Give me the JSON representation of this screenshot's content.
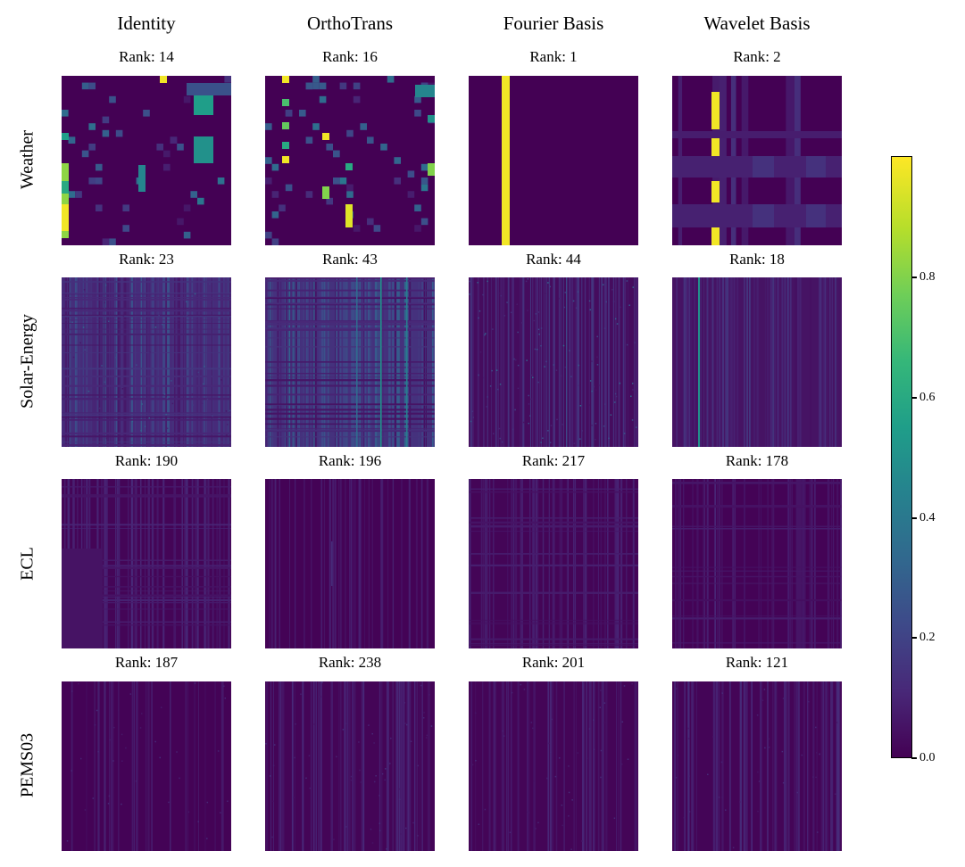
{
  "chart_data": {
    "type": "heatmap",
    "columns": [
      "Identity",
      "OrthoTrans",
      "Fourier Basis",
      "Wavelet Basis"
    ],
    "rows": [
      "Weather",
      "Solar-Energy",
      "ECL",
      "PEMS03"
    ],
    "ranks": [
      [
        "Rank: 14",
        "Rank: 16",
        "Rank: 1",
        "Rank: 2"
      ],
      [
        "Rank: 23",
        "Rank: 43",
        "Rank: 44",
        "Rank: 18"
      ],
      [
        "Rank: 190",
        "Rank: 196",
        "Rank: 217",
        "Rank: 178"
      ],
      [
        "Rank: 187",
        "Rank: 238",
        "Rank: 201",
        "Rank: 121"
      ]
    ],
    "colorbar": {
      "colormap": "viridis",
      "range": [
        0.0,
        1.0
      ],
      "ticks": [
        0.0,
        0.2,
        0.4,
        0.6,
        0.8
      ],
      "tick_labels": [
        "0.0",
        "0.2",
        "0.4",
        "0.6",
        "0.8"
      ]
    }
  }
}
